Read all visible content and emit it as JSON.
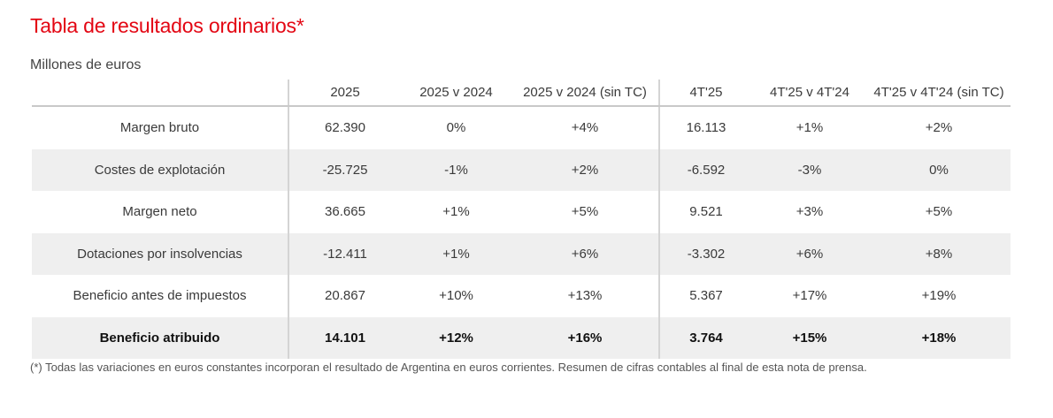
{
  "title": "Tabla de resultados ordinarios*",
  "subtitle": "Millones de euros",
  "table": {
    "headers": [
      "",
      "2025",
      "2025 v 2024",
      "2025 v 2024 (sin TC)",
      "4T'25",
      "4T'25 v 4T'24",
      "4T'25 v 4T'24 (sin TC)"
    ],
    "rows": [
      {
        "label": "Margen bruto",
        "cells": [
          "62.390",
          "0%",
          "+4%",
          "16.113",
          "+1%",
          "+2%"
        ]
      },
      {
        "label": "Costes de explotación",
        "cells": [
          "-25.725",
          "-1%",
          "+2%",
          "-6.592",
          "-3%",
          "0%"
        ]
      },
      {
        "label": "Margen neto",
        "cells": [
          "36.665",
          "+1%",
          "+5%",
          "9.521",
          "+3%",
          "+5%"
        ]
      },
      {
        "label": "Dotaciones por insolvencias",
        "cells": [
          "-12.411",
          "+1%",
          "+6%",
          "-3.302",
          "+6%",
          "+8%"
        ]
      },
      {
        "label": "Beneficio antes de impuestos",
        "cells": [
          "20.867",
          "+10%",
          "+13%",
          "5.367",
          "+17%",
          "+19%"
        ]
      },
      {
        "label": "Beneficio atribuido",
        "cells": [
          "14.101",
          "+12%",
          "+16%",
          "3.764",
          "+15%",
          "+18%"
        ]
      }
    ]
  },
  "footnote": "(*) Todas las variaciones en euros constantes incorporan el resultado de Argentina en euros corrientes. Resumen de cifras contables al final de esta nota de prensa."
}
